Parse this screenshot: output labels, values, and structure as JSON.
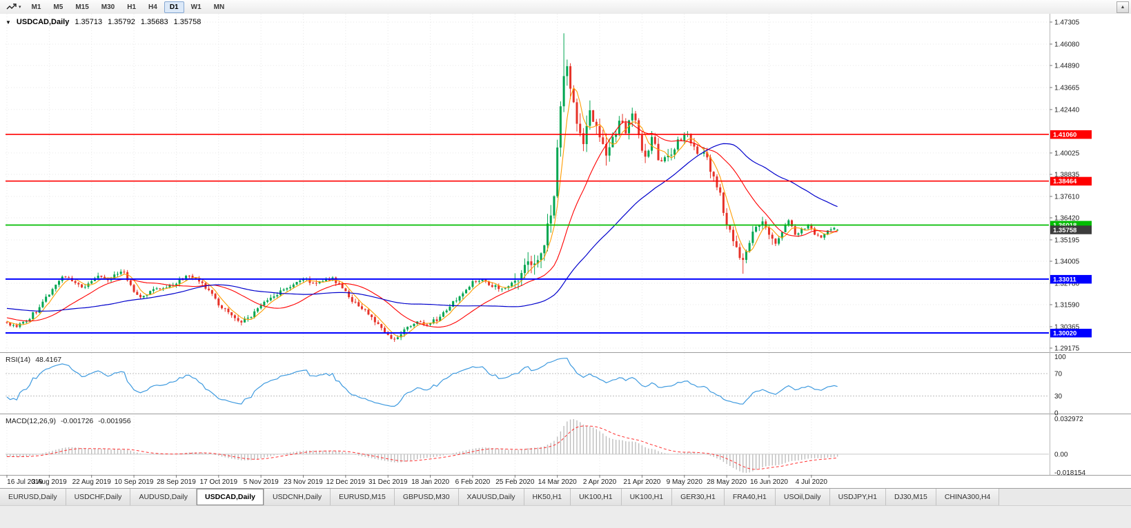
{
  "toolbar": {
    "timeframes": [
      "M1",
      "M5",
      "M15",
      "M30",
      "H1",
      "H4",
      "D1",
      "W1",
      "MN"
    ],
    "active_timeframe": "D1",
    "chart_type_icon": "candlestick-chart-icon",
    "scroll_up_glyph": "▲"
  },
  "chart": {
    "symbol_line": {
      "symbol": "USDCAD,Daily",
      "open": "1.35713",
      "high": "1.35792",
      "low": "1.35683",
      "close": "1.35758"
    },
    "price_axis": {
      "ticks": [
        "1.47305",
        "1.46080",
        "1.44890",
        "1.43665",
        "1.42440",
        "1.40025",
        "1.38835",
        "1.37610",
        "1.36420",
        "1.35195",
        "1.34005",
        "1.32780",
        "1.31590",
        "1.30365",
        "1.29175"
      ]
    },
    "hlines": [
      {
        "value": "1.41060",
        "price": 1.4106,
        "color": "#ff0000",
        "width": 1.6
      },
      {
        "value": "1.38464",
        "price": 1.38464,
        "color": "#ff0000",
        "width": 1.6
      },
      {
        "value": "1.36018",
        "price": 1.36018,
        "color": "#00bb00",
        "width": 1.8
      },
      {
        "value": "1.33011",
        "price": 1.33011,
        "color": "#0000ff",
        "width": 2
      },
      {
        "value": "1.30020",
        "price": 1.3002,
        "color": "#0000ff",
        "width": 2
      }
    ],
    "current_price": {
      "value": "1.35758"
    },
    "date_axis": [
      "16 Jul 2019",
      "3 Aug 2019",
      "22 Aug 2019",
      "10 Sep 2019",
      "28 Sep 2019",
      "17 Oct 2019",
      "5 Nov 2019",
      "23 Nov 2019",
      "12 Dec 2019",
      "31 Dec 2019",
      "18 Jan 2020",
      "6 Feb 2020",
      "25 Feb 2020",
      "14 Mar 2020",
      "2 Apr 2020",
      "21 Apr 2020",
      "9 May 2020",
      "28 May 2020",
      "16 Jun 2020",
      "4 Jul 2020"
    ]
  },
  "rsi": {
    "label": "RSI(14)",
    "value": "48.4167",
    "levels": [
      "100",
      "70",
      "30",
      "0"
    ]
  },
  "macd": {
    "label": "MACD(12,26,9)",
    "main": "-0.001726",
    "signal": "-0.001956",
    "axis": [
      "0.032972",
      "0.00",
      "-0.018154"
    ]
  },
  "tabs": {
    "active_index": 3,
    "items": [
      "EURUSD,Daily",
      "USDCHF,Daily",
      "AUDUSD,Daily",
      "USDCAD,Daily",
      "USDCNH,Daily",
      "EURUSD,M15",
      "GBPUSD,M30",
      "XAUUSD,Daily",
      "HK50,H1",
      "UK100,H1",
      "UK100,H1",
      "GER30,H1",
      "FRA40,H1",
      "USOil,Daily",
      "USDJPY,H1",
      "DJ30,M15",
      "CHINA300,H4"
    ]
  },
  "colors": {
    "candle_up": "#00a651",
    "candle_down": "#e63228",
    "ma_fast": "#ff9c00",
    "ma_mid": "#ff0000",
    "ma_slow": "#0000cc",
    "rsi": "#3e9adf",
    "macd_hist": "#bdbdbd",
    "macd_signal": "#ff3030",
    "badge_current": "#3c3c3c",
    "grid": "#e7e7e7"
  },
  "chart_data": {
    "type": "candlestick",
    "title": "USDCAD,Daily",
    "timeframe": "Daily",
    "y_axis": {
      "min": 1.289,
      "max": 1.476,
      "ticks": [
        1.47305,
        1.4608,
        1.4489,
        1.43665,
        1.4244,
        1.40025,
        1.38835,
        1.3761,
        1.3642,
        1.35195,
        1.34005,
        1.3278,
        1.3159,
        1.30365,
        1.29175
      ]
    },
    "x_axis": {
      "labels": [
        "16 Jul 2019",
        "3 Aug 2019",
        "22 Aug 2019",
        "10 Sep 2019",
        "28 Sep 2019",
        "17 Oct 2019",
        "5 Nov 2019",
        "23 Nov 2019",
        "12 Dec 2019",
        "31 Dec 2019",
        "18 Jan 2020",
        "6 Feb 2020",
        "25 Feb 2020",
        "14 Mar 2020",
        "2 Apr 2020",
        "21 Apr 2020",
        "9 May 2020",
        "28 May 2020",
        "16 Jun 2020",
        "4 Jul 2020"
      ],
      "bars_per_label": 13
    },
    "last_bar": {
      "open": 1.35713,
      "high": 1.35792,
      "low": 1.35683,
      "close": 1.35758
    },
    "extremes": {
      "high": 1.4668,
      "high_index": 171,
      "low": 1.2952,
      "low_index": 119
    },
    "horizontal_lines": [
      1.4106,
      1.38464,
      1.36018,
      1.33011,
      1.3002
    ],
    "overlays": [
      {
        "name": "ma-fast",
        "period": 5,
        "color": "#ff9c00"
      },
      {
        "name": "ma-medium",
        "period": 21,
        "color": "#ff0000"
      },
      {
        "name": "ma-slow",
        "period": 55,
        "color": "#0000cc"
      }
    ],
    "indicators": [
      {
        "name": "RSI",
        "period": 14,
        "last": 48.4167,
        "levels": [
          30,
          70
        ]
      },
      {
        "name": "MACD",
        "params": [
          12,
          26,
          9
        ],
        "last_main": -0.001726,
        "last_signal": -0.001956,
        "range": [
          -0.018154,
          0.032972
        ]
      }
    ],
    "anchors": [
      [
        -70,
        1.3175
      ],
      [
        -55,
        1.3135
      ],
      [
        -40,
        1.3205
      ],
      [
        -25,
        1.3155
      ],
      [
        -12,
        1.3085
      ],
      [
        -5,
        1.3075
      ],
      [
        0,
        1.306
      ],
      [
        3,
        1.3035
      ],
      [
        6,
        1.3065
      ],
      [
        10,
        1.3145
      ],
      [
        13,
        1.3215
      ],
      [
        17,
        1.3315
      ],
      [
        20,
        1.329
      ],
      [
        23,
        1.3255
      ],
      [
        26,
        1.329
      ],
      [
        28,
        1.332
      ],
      [
        31,
        1.3295
      ],
      [
        34,
        1.333
      ],
      [
        36,
        1.334
      ],
      [
        39,
        1.323
      ],
      [
        41,
        1.32
      ],
      [
        44,
        1.3235
      ],
      [
        48,
        1.325
      ],
      [
        52,
        1.3275
      ],
      [
        55,
        1.332
      ],
      [
        58,
        1.3305
      ],
      [
        62,
        1.324
      ],
      [
        65,
        1.3155
      ],
      [
        69,
        1.31
      ],
      [
        72,
        1.306
      ],
      [
        75,
        1.309
      ],
      [
        78,
        1.3155
      ],
      [
        82,
        1.3205
      ],
      [
        86,
        1.325
      ],
      [
        91,
        1.33
      ],
      [
        94,
        1.328
      ],
      [
        97,
        1.329
      ],
      [
        100,
        1.331
      ],
      [
        103,
        1.325
      ],
      [
        106,
        1.3175
      ],
      [
        109,
        1.3135
      ],
      [
        112,
        1.309
      ],
      [
        115,
        1.303
      ],
      [
        117,
        1.299
      ],
      [
        119,
        1.2968
      ],
      [
        121,
        1.2995
      ],
      [
        124,
        1.304
      ],
      [
        127,
        1.3062
      ],
      [
        130,
        1.3055
      ],
      [
        133,
        1.3092
      ],
      [
        136,
        1.3148
      ],
      [
        139,
        1.3205
      ],
      [
        143,
        1.329
      ],
      [
        146,
        1.3302
      ],
      [
        149,
        1.3258
      ],
      [
        152,
        1.3248
      ],
      [
        156,
        1.3292
      ],
      [
        158,
        1.3335
      ],
      [
        160,
        1.34
      ],
      [
        162,
        1.3388
      ],
      [
        164,
        1.3445
      ],
      [
        166,
        1.361
      ],
      [
        168,
        1.3762
      ],
      [
        170,
        1.4262
      ],
      [
        171,
        1.443
      ],
      [
        172,
        1.4485
      ],
      [
        173,
        1.436
      ],
      [
        175,
        1.4165
      ],
      [
        177,
        1.4052
      ],
      [
        179,
        1.424
      ],
      [
        181,
        1.4152
      ],
      [
        184,
        1.3988
      ],
      [
        186,
        1.4092
      ],
      [
        188,
        1.4182
      ],
      [
        190,
        1.4112
      ],
      [
        192,
        1.4222
      ],
      [
        194,
        1.4102
      ],
      [
        196,
        1.3982
      ],
      [
        198,
        1.4092
      ],
      [
        200,
        1.3962
      ],
      [
        203,
        1.3988
      ],
      [
        206,
        1.4078
      ],
      [
        209,
        1.4108
      ],
      [
        212,
        1.3998
      ],
      [
        215,
        1.3978
      ],
      [
        217,
        1.3872
      ],
      [
        219,
        1.3782
      ],
      [
        221,
        1.3602
      ],
      [
        223,
        1.3512
      ],
      [
        226,
        1.3408
      ],
      [
        228,
        1.3502
      ],
      [
        230,
        1.3592
      ],
      [
        232,
        1.3622
      ],
      [
        234,
        1.3548
      ],
      [
        236,
        1.3498
      ],
      [
        238,
        1.3562
      ],
      [
        240,
        1.3628
      ],
      [
        242,
        1.3548
      ],
      [
        244,
        1.3582
      ],
      [
        246,
        1.3602
      ],
      [
        248,
        1.3548
      ],
      [
        250,
        1.3532
      ],
      [
        252,
        1.3572
      ],
      [
        254,
        1.3586
      ],
      [
        255,
        1.35758
      ]
    ]
  }
}
